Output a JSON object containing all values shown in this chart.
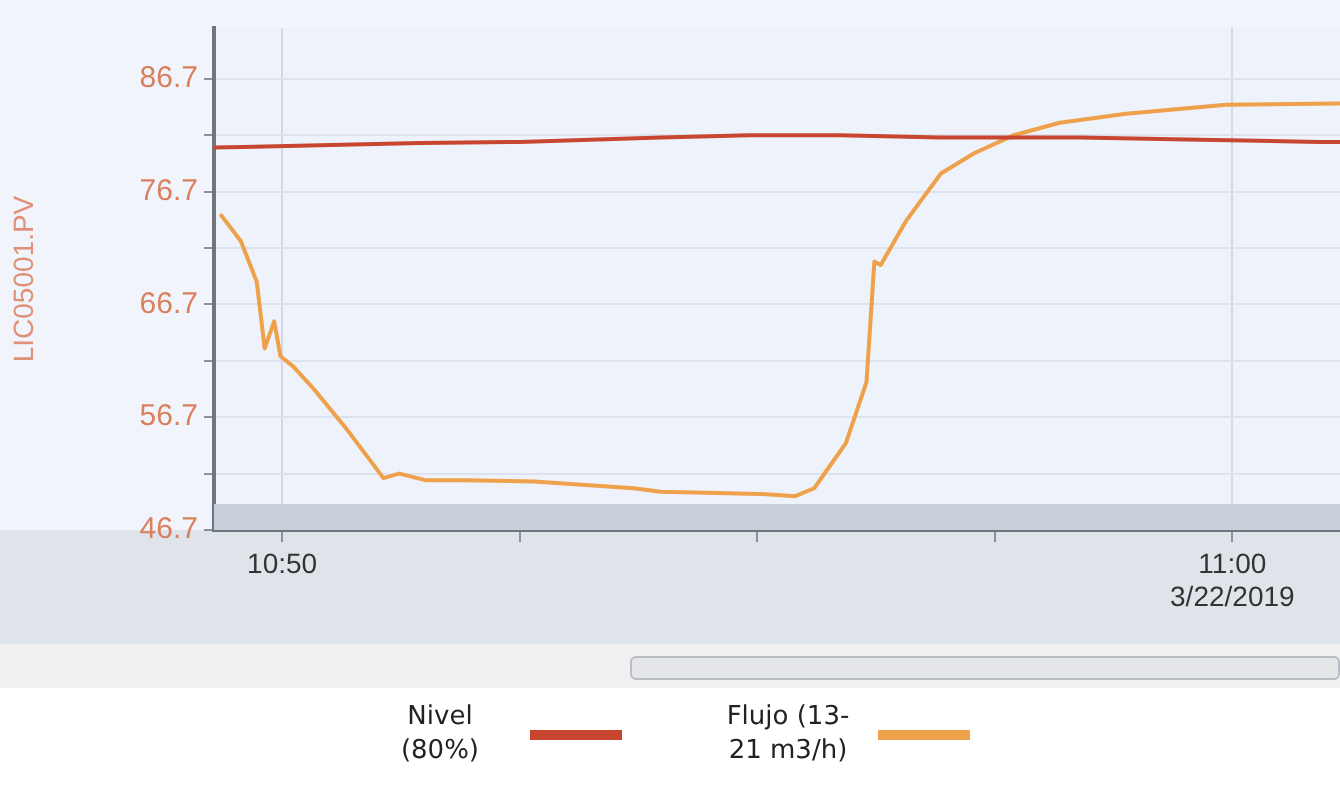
{
  "chart_data": {
    "type": "line",
    "ylabel": "LIC05001.PV",
    "xlim": [
      "2019-03-22T10:49:17",
      "2019-03-22T11:01:08"
    ],
    "xticks": [
      {
        "value": "2019-03-22T10:50",
        "label": "10:50"
      },
      {
        "value": "2019-03-22T10:52:30",
        "label": null
      },
      {
        "value": "2019-03-22T10:55",
        "label": null
      },
      {
        "value": "2019-03-22T10:57:30",
        "label": null
      },
      {
        "value": "2019-03-22T11:00",
        "label": "11:00\n3/22/2019"
      }
    ],
    "ylim": [
      46.7,
      91.2
    ],
    "yticks": [
      46.7,
      {
        "value": 51.7,
        "label": null
      },
      56.7,
      {
        "value": 61.7,
        "label": null
      },
      66.7,
      {
        "value": 71.7,
        "label": null
      },
      76.7,
      {
        "value": 81.7,
        "label": null
      },
      86.7
    ],
    "grid": true,
    "legend": "bottom",
    "marker": "none",
    "line_style": "solid",
    "bands": [
      {
        "axis": "y",
        "from": 46.7,
        "to": 49.0,
        "color": "#c9d0dc"
      }
    ],
    "series": [
      {
        "name": "Nivel (80%)",
        "color": "#c8452f",
        "x": [
          "2019-03-22T10:49:17",
          "2019-03-22T10:50:24",
          "2019-03-22T10:51:27",
          "2019-03-22T10:52:30",
          "2019-03-22T10:53:59",
          "2019-03-22T10:54:55",
          "2019-03-22T10:55:52",
          "2019-03-22T10:56:56",
          "2019-03-22T10:58:24",
          "2019-03-22T10:59:40",
          "2019-03-22T11:00:55",
          "2019-03-22T11:01:08"
        ],
        "values": [
          80.6,
          80.8,
          81.0,
          81.1,
          81.5,
          81.7,
          81.7,
          81.5,
          81.5,
          81.3,
          81.1,
          81.1
        ]
      },
      {
        "name": "Flujo (13-21 m3/h)",
        "color": "#eea04a",
        "x": [
          "2019-03-22T10:49:21",
          "2019-03-22T10:49:34",
          "2019-03-22T10:49:44",
          "2019-03-22T10:49:49",
          "2019-03-22T10:49:55",
          "2019-03-22T10:49:59",
          "2019-03-22T10:50:07",
          "2019-03-22T10:50:20",
          "2019-03-22T10:50:41",
          "2019-03-22T10:51:04",
          "2019-03-22T10:51:14",
          "2019-03-22T10:51:31",
          "2019-03-22T10:51:56",
          "2019-03-22T10:52:39",
          "2019-03-22T10:53:42",
          "2019-03-22T10:53:59",
          "2019-03-22T10:55:02",
          "2019-03-22T10:55:24",
          "2019-03-22T10:55:36",
          "2019-03-22T10:55:56",
          "2019-03-22T10:56:09",
          "2019-03-22T10:56:14",
          "2019-03-22T10:56:18",
          "2019-03-22T10:56:34",
          "2019-03-22T10:56:56",
          "2019-03-22T10:57:17",
          "2019-03-22T10:57:42",
          "2019-03-22T10:58:11",
          "2019-03-22T10:58:53",
          "2019-03-22T10:59:56",
          "2019-03-22T11:01:08"
        ],
        "values": [
          74.7,
          72.3,
          68.7,
          62.8,
          65.2,
          62.1,
          61.2,
          59.2,
          55.6,
          51.3,
          51.7,
          51.1,
          51.1,
          51.0,
          50.4,
          50.1,
          49.9,
          49.7,
          50.4,
          54.4,
          59.8,
          70.5,
          70.2,
          74.1,
          78.3,
          80.1,
          81.7,
          82.8,
          83.6,
          84.4,
          84.5
        ]
      }
    ]
  }
}
